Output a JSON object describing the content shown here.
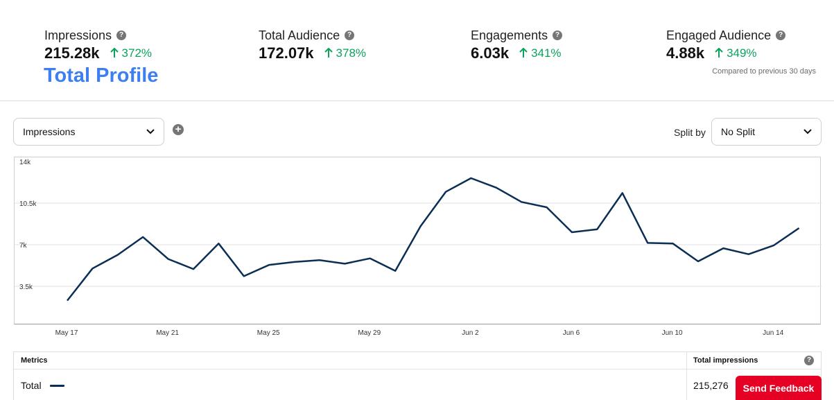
{
  "kpis": [
    {
      "label": "Impressions",
      "value": "215.28k",
      "delta": "372%"
    },
    {
      "label": "Total Audience",
      "value": "172.07k",
      "delta": "378%"
    },
    {
      "label": "Engagements",
      "value": "6.03k",
      "delta": "341%"
    },
    {
      "label": "Engaged Audience",
      "value": "4.88k",
      "delta": "349%"
    }
  ],
  "profile_title": "Total Profile",
  "compare_note": "Compared to previous 30 days",
  "controls": {
    "metric_select": "Impressions",
    "split_label": "Split by",
    "split_select": "No Split"
  },
  "colors": {
    "line": "#0b2e55",
    "positive": "#0aa35b",
    "brand_red": "#e60023",
    "profile_blue": "#3d7ff0"
  },
  "chart_data": {
    "type": "line",
    "ylim": [
      0,
      14000
    ],
    "yticks": [
      {
        "label": "14k",
        "value": 14000
      },
      {
        "label": "10.5k",
        "value": 10500
      },
      {
        "label": "7k",
        "value": 7000
      },
      {
        "label": "3.5k",
        "value": 3500
      }
    ],
    "xtick_labels": [
      "May 17",
      "May 21",
      "May 25",
      "May 29",
      "Jun 2",
      "Jun 6",
      "Jun 10",
      "Jun 14"
    ],
    "x": [
      "May 17",
      "May 18",
      "May 19",
      "May 20",
      "May 21",
      "May 22",
      "May 23",
      "May 24",
      "May 25",
      "May 26",
      "May 27",
      "May 28",
      "May 29",
      "May 30",
      "May 31",
      "Jun 1",
      "Jun 2",
      "Jun 3",
      "Jun 4",
      "Jun 5",
      "Jun 6",
      "Jun 7",
      "Jun 8",
      "Jun 9",
      "Jun 10",
      "Jun 11",
      "Jun 12",
      "Jun 13",
      "Jun 14",
      "Jun 15"
    ],
    "series": [
      {
        "values": [
          2300,
          5000,
          6150,
          7650,
          5800,
          4950,
          7100,
          4350,
          5300,
          5550,
          5700,
          5400,
          5850,
          4800,
          8550,
          11450,
          12600,
          11800,
          10600,
          10150,
          8050,
          8300,
          11350,
          7150,
          7100,
          5600,
          6700,
          6200,
          6950,
          8400
        ]
      }
    ]
  },
  "table": {
    "col_metrics": "Metrics",
    "col_total": "Total impressions",
    "row_label": "Total",
    "row_value": "215,276"
  },
  "feedback_label": "Send Feedback",
  "icons": {
    "help": "help-icon",
    "up": "arrow-up-icon",
    "chevron": "chevron-down-icon",
    "add": "add-icon"
  }
}
